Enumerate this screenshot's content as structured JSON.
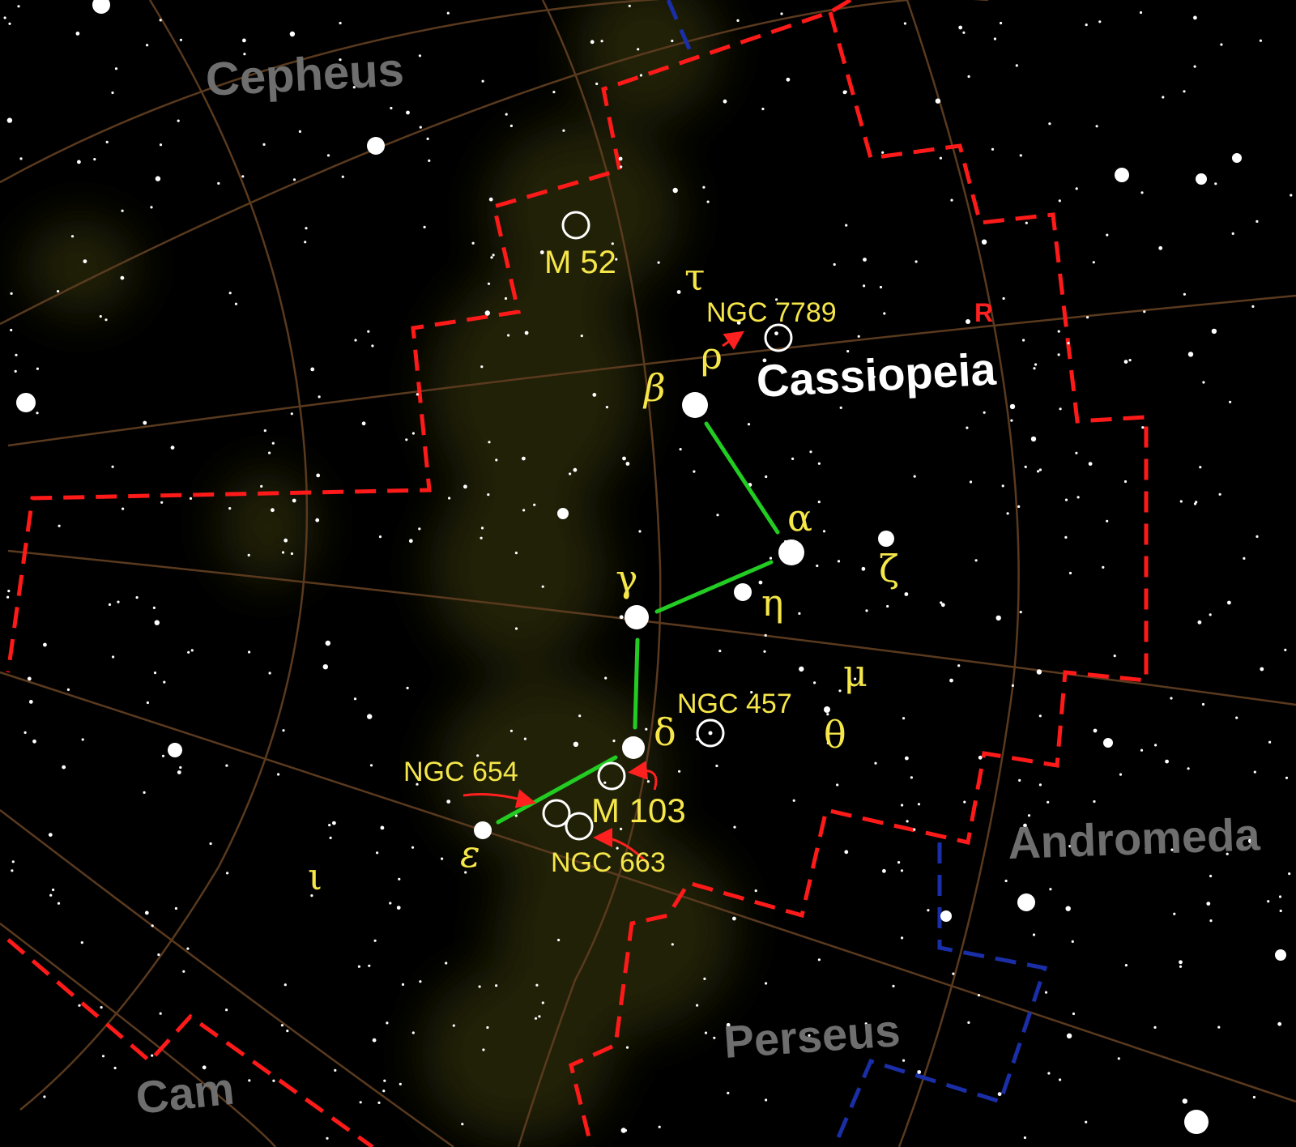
{
  "colors": {
    "background": "#000000",
    "grid": "#5a3a1e",
    "boundary_main": "#ff1a1a",
    "boundary_other": "#1a2ea8",
    "stick_figure": "#22cc22",
    "greek_label": "#f5e64a",
    "object_label": "#f5e64a",
    "constellation_name": "#ffffff",
    "neighbor_name": "#6e6e6e",
    "pointer_arrow": "#ff2020",
    "milky_way": "#4a4a10"
  },
  "constellation": {
    "name": "Cassiopeia"
  },
  "neighbors": {
    "cepheus": "Cepheus",
    "andromeda": "Andromeda",
    "perseus": "Perseus",
    "camelopardalis": "Cam"
  },
  "star_labels": {
    "alpha": "α",
    "beta": "β",
    "gamma": "γ",
    "delta": "δ",
    "epsilon": "ε",
    "zeta": "ζ",
    "eta": "η",
    "theta": "θ",
    "iota": "ι",
    "mu": "μ",
    "rho": "ρ",
    "tau": "τ"
  },
  "variable_star": {
    "label": "R"
  },
  "deep_sky": {
    "m52": "M 52",
    "ngc7789": "NGC 7789",
    "ngc457": "NGC 457",
    "ngc654": "NGC 654",
    "m103": "M 103",
    "ngc663": "NGC 663"
  }
}
